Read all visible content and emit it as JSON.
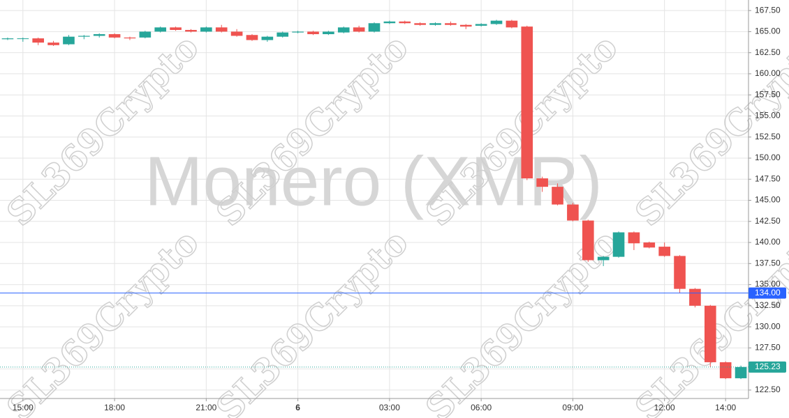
{
  "chart_data": {
    "type": "candlestick",
    "watermark": "Monero (XMR)",
    "watermark_repeat": "SL369Crypto",
    "categories": [
      null,
      "15:00",
      null,
      null,
      null,
      null,
      null,
      "18:00",
      null,
      null,
      null,
      null,
      null,
      "21:00",
      null,
      null,
      null,
      null,
      null,
      "6",
      null,
      null,
      null,
      null,
      null,
      "03:00",
      null,
      null,
      null,
      null,
      null,
      "06:00",
      null,
      null,
      null,
      null,
      null,
      "09:00",
      null,
      null,
      null,
      null,
      null,
      "12:00",
      null,
      null,
      null,
      "14:00",
      null
    ],
    "open": [
      164.1,
      164.2,
      164.2,
      163.7,
      163.5,
      164.4,
      164.5,
      164.7,
      164.3,
      164.3,
      165.0,
      165.5,
      165.2,
      165.0,
      165.5,
      165.0,
      164.6,
      164.0,
      164.4,
      164.9,
      165.0,
      164.7,
      164.9,
      165.5,
      165.0,
      166.0,
      166.2,
      166.0,
      165.8,
      166.0,
      165.8,
      165.7,
      165.9,
      166.3,
      165.6,
      147.6,
      146.6,
      144.5,
      142.6,
      137.9,
      138.3,
      141.2,
      140.0,
      139.5,
      138.4,
      134.5,
      132.5,
      125.8,
      123.9
    ],
    "high": [
      164.3,
      164.3,
      164.3,
      163.9,
      164.6,
      164.6,
      164.8,
      164.8,
      164.4,
      165.1,
      165.6,
      165.6,
      165.3,
      165.6,
      165.8,
      165.3,
      164.7,
      164.5,
      165.0,
      165.1,
      165.1,
      165.1,
      165.6,
      165.7,
      166.1,
      166.3,
      166.3,
      166.1,
      166.1,
      166.2,
      165.9,
      166.0,
      166.4,
      166.4,
      165.7,
      147.8,
      147.0,
      144.7,
      142.7,
      138.4,
      141.3,
      141.3,
      140.1,
      140.0,
      138.5,
      134.6,
      132.6,
      125.9,
      125.4
    ],
    "low": [
      164.0,
      163.8,
      163.4,
      163.3,
      163.4,
      164.1,
      164.3,
      164.2,
      164.0,
      164.2,
      164.9,
      165.1,
      164.9,
      164.9,
      164.9,
      164.4,
      163.9,
      163.8,
      164.3,
      164.8,
      164.6,
      164.6,
      164.8,
      164.9,
      164.9,
      165.9,
      165.9,
      165.7,
      165.7,
      165.7,
      165.3,
      165.6,
      165.8,
      165.4,
      147.4,
      146.0,
      144.4,
      142.5,
      137.7,
      137.2,
      138.2,
      139.1,
      139.3,
      138.3,
      134.0,
      132.3,
      125.2,
      123.8,
      123.8
    ],
    "close": [
      164.2,
      164.2,
      163.7,
      163.4,
      164.4,
      164.5,
      164.7,
      164.3,
      164.2,
      165.0,
      165.5,
      165.2,
      165.0,
      165.5,
      165.0,
      164.5,
      164.0,
      164.4,
      164.9,
      165.0,
      164.7,
      165.0,
      165.5,
      165.0,
      166.0,
      166.2,
      166.0,
      165.8,
      166.0,
      165.8,
      165.6,
      165.9,
      166.3,
      165.5,
      147.6,
      146.6,
      144.5,
      142.6,
      137.9,
      138.3,
      141.2,
      139.9,
      139.4,
      138.4,
      134.5,
      132.5,
      125.8,
      123.9,
      125.23
    ],
    "up_color": "#26a69a",
    "down_color": "#ef5350",
    "ylim": [
      121.5,
      168.75
    ],
    "yticks": [
      {
        "value": 122.5,
        "label": "122.50"
      },
      {
        "value": 125,
        "label": "125.00"
      },
      {
        "value": 127.5,
        "label": "127.50"
      },
      {
        "value": 130,
        "label": "130.00"
      },
      {
        "value": 132.5,
        "label": "132.50"
      },
      {
        "value": 135,
        "label": "135.00"
      },
      {
        "value": 137.5,
        "label": "137.50"
      },
      {
        "value": 140,
        "label": "140.00"
      },
      {
        "value": 142.5,
        "label": "142.50"
      },
      {
        "value": 145,
        "label": "145.00"
      },
      {
        "value": 147.5,
        "label": "147.50"
      },
      {
        "value": 150,
        "label": "150.00"
      },
      {
        "value": 152.5,
        "label": "152.50"
      },
      {
        "value": 155,
        "label": "155.00"
      },
      {
        "value": 157.5,
        "label": "157.50"
      },
      {
        "value": 160,
        "label": "160.00"
      },
      {
        "value": 162.5,
        "label": "162.50"
      },
      {
        "value": 165,
        "label": "165.00"
      },
      {
        "value": 167.5,
        "label": "167.50"
      }
    ],
    "grid": true,
    "hlines": [
      {
        "value": 134,
        "label": "134.00",
        "color": "#2962ff",
        "style": "solid"
      },
      {
        "value": 125.23,
        "label": "125.23",
        "color": "#26a69a",
        "style": "dotted"
      }
    ]
  }
}
